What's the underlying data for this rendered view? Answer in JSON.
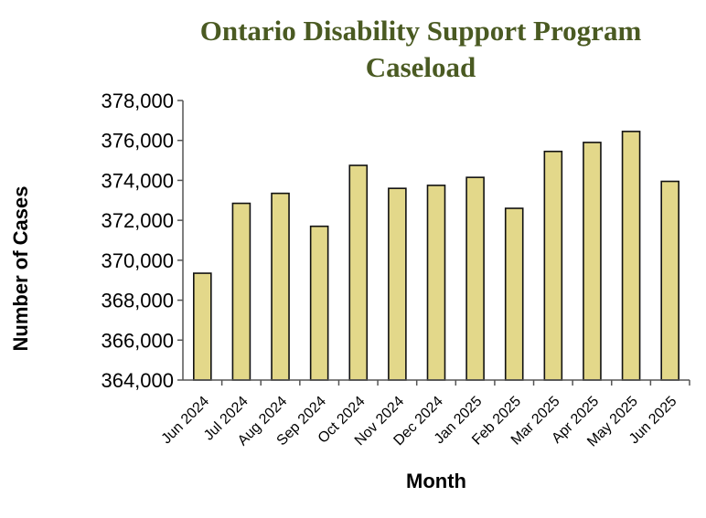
{
  "colors": {
    "title": "#4a5a22",
    "bar_fill": "#e3d88a",
    "bar_stroke": "#111111",
    "axis": "#555555"
  },
  "chart_data": {
    "type": "bar",
    "title": [
      "Ontario Disability Support Program",
      "Caseload"
    ],
    "xlabel": "Month",
    "ylabel": "Number of Cases",
    "categories": [
      "Jun 2024",
      "Jul 2024",
      "Aug 2024",
      "Sep 2024",
      "Oct 2024",
      "Nov 2024",
      "Dec 2024",
      "Jan 2025",
      "Feb 2025",
      "Mar 2025",
      "Apr 2025",
      "May 2025",
      "Jun 2025"
    ],
    "values": [
      369350,
      372850,
      373350,
      371700,
      374750,
      373600,
      373750,
      374150,
      372600,
      375450,
      375900,
      376450,
      373950
    ],
    "ylim": [
      364000,
      378000
    ],
    "yticks": [
      364000,
      366000,
      368000,
      370000,
      372000,
      374000,
      376000,
      378000
    ],
    "ytick_labels": [
      "364,000",
      "366,000",
      "368,000",
      "370,000",
      "372,000",
      "374,000",
      "376,000",
      "378,000"
    ],
    "grid": false,
    "legend": "none"
  }
}
